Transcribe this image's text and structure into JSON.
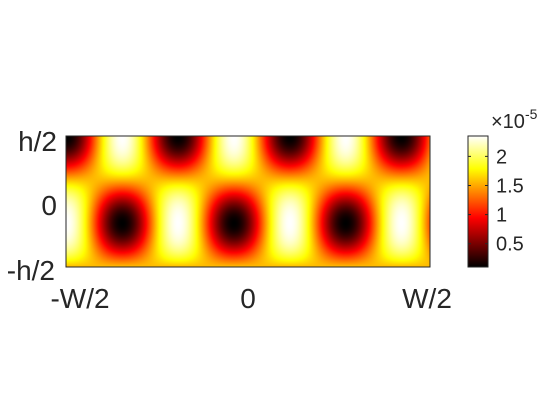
{
  "chart_data": {
    "type": "heatmap",
    "title": "",
    "xlabel": "",
    "ylabel": "",
    "x_ticks": [
      "-W/2",
      "0",
      "W/2"
    ],
    "y_ticks": [
      "h/2",
      "0",
      "-h/2"
    ],
    "colormap": "hot",
    "field": {
      "pattern": "standing-wave",
      "x_periods_across_width": 6.5,
      "y_periods_across_height": 1.5,
      "min": 0.1,
      "max": 2.35
    },
    "colorbar": {
      "exponent_label": "×10",
      "exponent_power": "-5",
      "ticks": [
        {
          "value": 0.5,
          "label": "0.5"
        },
        {
          "value": 1.0,
          "label": "1"
        },
        {
          "value": 1.5,
          "label": "1.5"
        },
        {
          "value": 2.0,
          "label": "2"
        }
      ],
      "range": [
        0.1,
        2.35
      ]
    }
  }
}
